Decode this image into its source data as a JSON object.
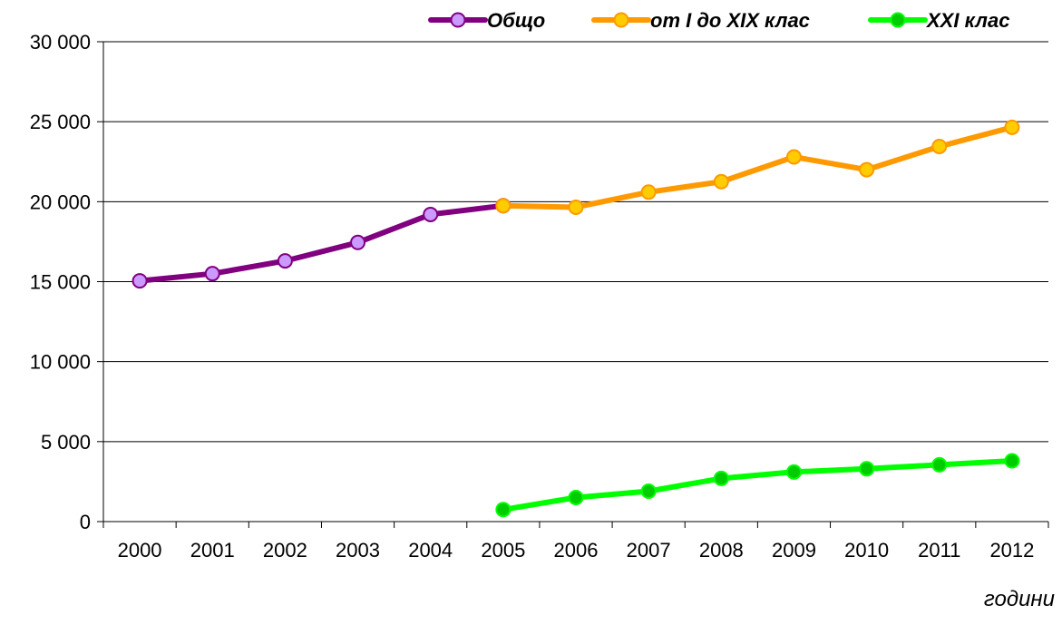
{
  "chart_data": {
    "type": "line",
    "title": "",
    "xlabel": "години",
    "ylabel": "",
    "categories": [
      "2000",
      "2001",
      "2002",
      "2003",
      "2004",
      "2005",
      "2006",
      "2007",
      "2008",
      "2009",
      "2010",
      "2011",
      "2012"
    ],
    "ylim": [
      0,
      30000
    ],
    "yticks": [
      0,
      5000,
      10000,
      15000,
      20000,
      25000,
      30000
    ],
    "ytick_labels": [
      "0",
      "5 000",
      "10 000",
      "15 000",
      "20 000",
      "25 000",
      "30 000"
    ],
    "grid": true,
    "legend_position": "top-right",
    "series": [
      {
        "name": "Общо",
        "color": "#800080",
        "marker_color": "#CC99FF",
        "values": [
          15050,
          15500,
          16300,
          17450,
          19200,
          19750,
          null,
          null,
          null,
          null,
          null,
          null,
          null
        ]
      },
      {
        "name": "от I до XIX клас",
        "color": "#FF9900",
        "marker_color": "#FFCC00",
        "values": [
          null,
          null,
          null,
          null,
          null,
          19750,
          19650,
          20600,
          21250,
          22800,
          22000,
          23450,
          24650
        ]
      },
      {
        "name": "XXI клас",
        "color": "#00FF00",
        "marker_color": "#00CC00",
        "values": [
          null,
          null,
          null,
          null,
          null,
          750,
          1500,
          1900,
          2700,
          3100,
          3300,
          3550,
          3800
        ]
      }
    ]
  }
}
